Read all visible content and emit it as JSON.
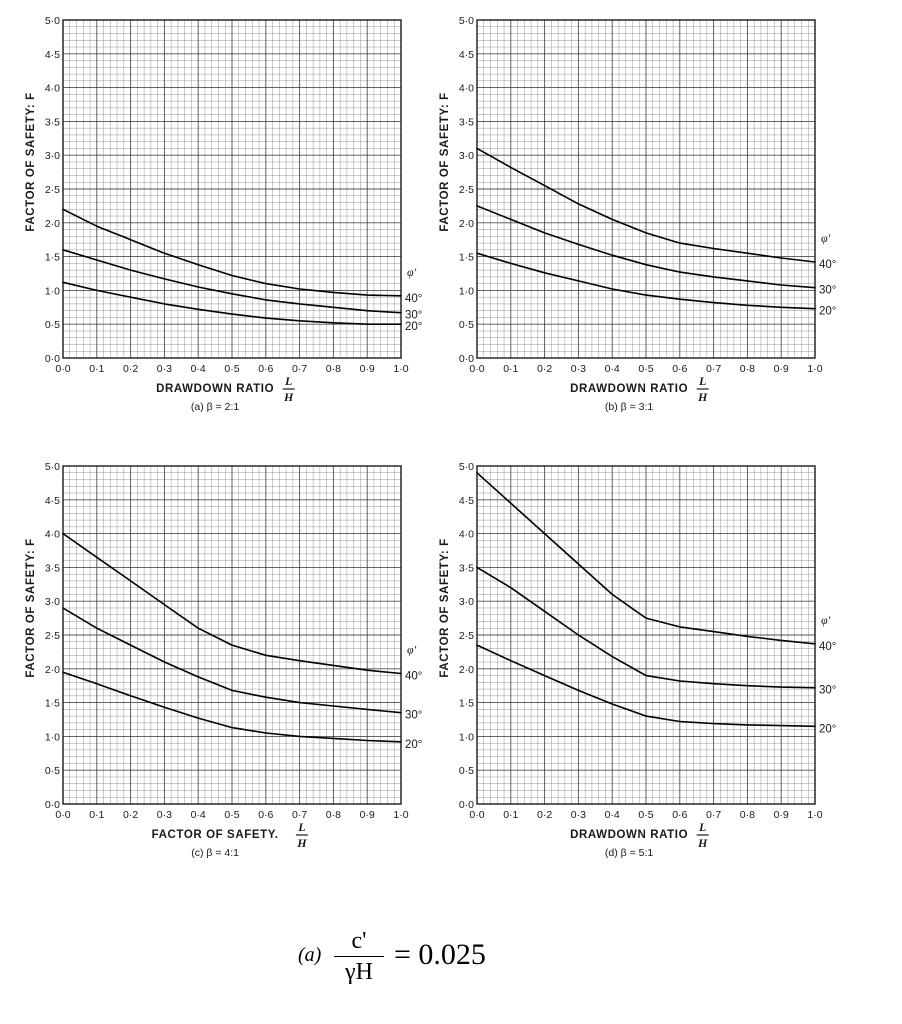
{
  "figure": {
    "formula": {
      "prefix": "(a)",
      "numerator": "c'",
      "denominator": "γH",
      "rhs": "= 0.025"
    }
  },
  "chart_data": [
    {
      "type": "line",
      "caption": "(a)  β = 2:1",
      "xlabel": "DRAWDOWN RATIO",
      "xlabel_fraction": {
        "num": "L",
        "den": "H"
      },
      "ylabel": "FACTOR OF SAFETY: F",
      "xlim": [
        0,
        1.0
      ],
      "ylim": [
        0,
        5.0
      ],
      "xticks": [
        "0·0",
        "0·1",
        "0·2",
        "0·3",
        "0·4",
        "0·5",
        "0·6",
        "0·7",
        "0·8",
        "0·9",
        "1·0"
      ],
      "yticks": [
        "0·5",
        "1·0",
        "1·5",
        "2·0",
        "2·5",
        "3·0",
        "3·5",
        "4·0",
        "4·5",
        "5·0"
      ],
      "legend_title": "φ'",
      "grid": true,
      "series": [
        {
          "name": "40°",
          "x": [
            0,
            0.1,
            0.2,
            0.3,
            0.4,
            0.5,
            0.6,
            0.7,
            0.8,
            0.9,
            1.0
          ],
          "y": [
            2.2,
            1.95,
            1.75,
            1.55,
            1.38,
            1.22,
            1.1,
            1.02,
            0.97,
            0.93,
            0.92
          ]
        },
        {
          "name": "30°",
          "x": [
            0,
            0.1,
            0.2,
            0.3,
            0.4,
            0.5,
            0.6,
            0.7,
            0.8,
            0.9,
            1.0
          ],
          "y": [
            1.6,
            1.45,
            1.3,
            1.17,
            1.05,
            0.95,
            0.86,
            0.8,
            0.75,
            0.7,
            0.67
          ]
        },
        {
          "name": "20°",
          "x": [
            0,
            0.1,
            0.2,
            0.3,
            0.4,
            0.5,
            0.6,
            0.7,
            0.8,
            0.9,
            1.0
          ],
          "y": [
            1.12,
            1.0,
            0.9,
            0.8,
            0.72,
            0.65,
            0.59,
            0.55,
            0.52,
            0.5,
            0.5
          ]
        }
      ]
    },
    {
      "type": "line",
      "caption": "(b)  β = 3:1",
      "xlabel": "DRAWDOWN RATIO",
      "xlabel_fraction": {
        "num": "L",
        "den": "H"
      },
      "ylabel": "FACTOR OF SAFETY: F",
      "xlim": [
        0,
        1.0
      ],
      "ylim": [
        0,
        5.0
      ],
      "xticks": [
        "0·0",
        "0·1",
        "0·2",
        "0·3",
        "0·4",
        "0·5",
        "0·6",
        "0·7",
        "0·8",
        "0·9",
        "1·0"
      ],
      "yticks": [
        "0·5",
        "1·0",
        "1·5",
        "2·0",
        "2·5",
        "3·0",
        "3·5",
        "4·0",
        "4·5",
        "5·0"
      ],
      "legend_title": "φ'",
      "grid": true,
      "series": [
        {
          "name": "40°",
          "x": [
            0,
            0.1,
            0.2,
            0.3,
            0.4,
            0.5,
            0.6,
            0.7,
            0.8,
            0.9,
            1.0
          ],
          "y": [
            3.1,
            2.82,
            2.55,
            2.28,
            2.05,
            1.85,
            1.7,
            1.62,
            1.55,
            1.48,
            1.42
          ]
        },
        {
          "name": "30°",
          "x": [
            0,
            0.1,
            0.2,
            0.3,
            0.4,
            0.5,
            0.6,
            0.7,
            0.8,
            0.9,
            1.0
          ],
          "y": [
            2.25,
            2.05,
            1.85,
            1.68,
            1.52,
            1.38,
            1.27,
            1.2,
            1.14,
            1.08,
            1.04
          ]
        },
        {
          "name": "20°",
          "x": [
            0,
            0.1,
            0.2,
            0.3,
            0.4,
            0.5,
            0.6,
            0.7,
            0.8,
            0.9,
            1.0
          ],
          "y": [
            1.55,
            1.4,
            1.26,
            1.14,
            1.02,
            0.93,
            0.87,
            0.82,
            0.78,
            0.75,
            0.73
          ]
        }
      ]
    },
    {
      "type": "line",
      "caption": "(c)  β = 4:1",
      "xlabel": "FACTOR OF SAFETY.",
      "xlabel_fraction": {
        "num": "L",
        "den": "H"
      },
      "ylabel": "FACTOR OF SAFETY: F",
      "xlim": [
        0,
        1.0
      ],
      "ylim": [
        0,
        5.0
      ],
      "xticks": [
        "0·0",
        "0·1",
        "0·2",
        "0·3",
        "0·4",
        "0·5",
        "0·6",
        "0·7",
        "0·8",
        "0·9",
        "1·0"
      ],
      "yticks": [
        "0·5",
        "1·0",
        "1·5",
        "2·0",
        "2·5",
        "3·0",
        "3·5",
        "4·0",
        "4·5",
        "5·0"
      ],
      "legend_title": "φ'",
      "grid": true,
      "series": [
        {
          "name": "40°",
          "x": [
            0,
            0.1,
            0.2,
            0.3,
            0.4,
            0.5,
            0.6,
            0.7,
            0.8,
            0.9,
            1.0
          ],
          "y": [
            4.0,
            3.65,
            3.3,
            2.95,
            2.6,
            2.35,
            2.2,
            2.12,
            2.05,
            1.98,
            1.93
          ]
        },
        {
          "name": "30°",
          "x": [
            0,
            0.1,
            0.2,
            0.3,
            0.4,
            0.5,
            0.6,
            0.7,
            0.8,
            0.9,
            1.0
          ],
          "y": [
            2.9,
            2.6,
            2.35,
            2.1,
            1.88,
            1.68,
            1.58,
            1.5,
            1.45,
            1.4,
            1.35
          ]
        },
        {
          "name": "20°",
          "x": [
            0,
            0.1,
            0.2,
            0.3,
            0.4,
            0.5,
            0.6,
            0.7,
            0.8,
            0.9,
            1.0
          ],
          "y": [
            1.95,
            1.78,
            1.6,
            1.43,
            1.27,
            1.13,
            1.05,
            1.0,
            0.97,
            0.94,
            0.92
          ]
        }
      ]
    },
    {
      "type": "line",
      "caption": "(d)  β = 5:1",
      "xlabel": "DRAWDOWN RATIO",
      "xlabel_fraction": {
        "num": "L",
        "den": "H"
      },
      "ylabel": "FACTOR OF SAFETY: F",
      "xlim": [
        0,
        1.0
      ],
      "ylim": [
        0,
        5.0
      ],
      "xticks": [
        "0·0",
        "0·1",
        "0·2",
        "0·3",
        "0·4",
        "0·5",
        "0·6",
        "0·7",
        "0·8",
        "0·9",
        "1·0"
      ],
      "yticks": [
        "0·5",
        "1·0",
        "1·5",
        "2·0",
        "2·5",
        "3·0",
        "3·5",
        "4·0",
        "4·5",
        "5·0"
      ],
      "legend_title": "φ'",
      "grid": true,
      "series": [
        {
          "name": "40°",
          "x": [
            0,
            0.1,
            0.2,
            0.3,
            0.4,
            0.5,
            0.6,
            0.7,
            0.8,
            0.9,
            1.0
          ],
          "y": [
            4.9,
            4.45,
            4.0,
            3.55,
            3.1,
            2.75,
            2.62,
            2.55,
            2.48,
            2.42,
            2.37
          ]
        },
        {
          "name": "30°",
          "x": [
            0,
            0.1,
            0.2,
            0.3,
            0.4,
            0.5,
            0.6,
            0.7,
            0.8,
            0.9,
            1.0
          ],
          "y": [
            3.5,
            3.2,
            2.85,
            2.5,
            2.18,
            1.9,
            1.82,
            1.78,
            1.75,
            1.73,
            1.72
          ]
        },
        {
          "name": "20°",
          "x": [
            0,
            0.1,
            0.2,
            0.3,
            0.4,
            0.5,
            0.6,
            0.7,
            0.8,
            0.9,
            1.0
          ],
          "y": [
            2.35,
            2.12,
            1.9,
            1.68,
            1.48,
            1.3,
            1.22,
            1.19,
            1.17,
            1.16,
            1.15
          ]
        }
      ]
    }
  ]
}
